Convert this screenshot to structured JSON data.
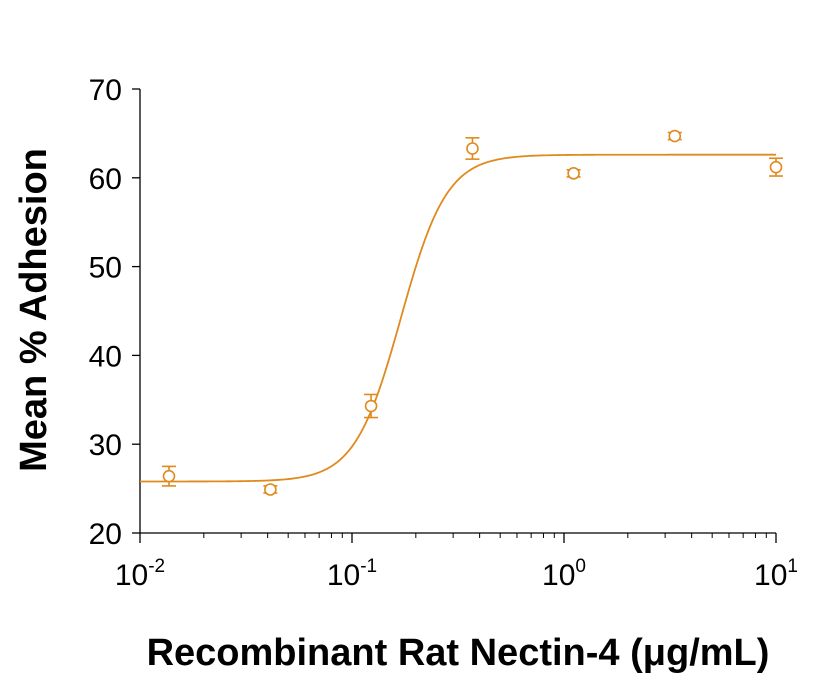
{
  "chart_data": {
    "type": "scatter",
    "xlabel": "Recombinant Rat Nectin-4 (μg/mL)",
    "ylabel": "Mean % Adhesion",
    "x_scale": "log",
    "xlim": [
      0.01,
      10
    ],
    "ylim": [
      20,
      70
    ],
    "y_ticks": [
      20,
      30,
      40,
      50,
      60,
      70
    ],
    "x_ticks": [
      {
        "value": 0.01,
        "base": "10",
        "exponent": "-2"
      },
      {
        "value": 0.1,
        "base": "10",
        "exponent": "-1"
      },
      {
        "value": 1,
        "base": "10",
        "exponent": "0"
      },
      {
        "value": 10,
        "base": "10",
        "exponent": "1"
      }
    ],
    "grid": false,
    "color": "#E08A1E",
    "points": [
      {
        "x": 0.0137,
        "y": 26.4,
        "err": 1.1
      },
      {
        "x": 0.0412,
        "y": 24.9,
        "err": 0.4
      },
      {
        "x": 0.123,
        "y": 34.3,
        "err": 1.3
      },
      {
        "x": 0.37,
        "y": 63.3,
        "err": 1.2
      },
      {
        "x": 1.11,
        "y": 60.5,
        "err": 0.4
      },
      {
        "x": 3.33,
        "y": 64.7,
        "err": 0.4
      },
      {
        "x": 10,
        "y": 61.2,
        "err": 1.0
      }
    ],
    "fit": {
      "model": "4PL",
      "bottom": 25.8,
      "top": 62.6,
      "ec50": 0.17,
      "hill": 4.0
    }
  }
}
